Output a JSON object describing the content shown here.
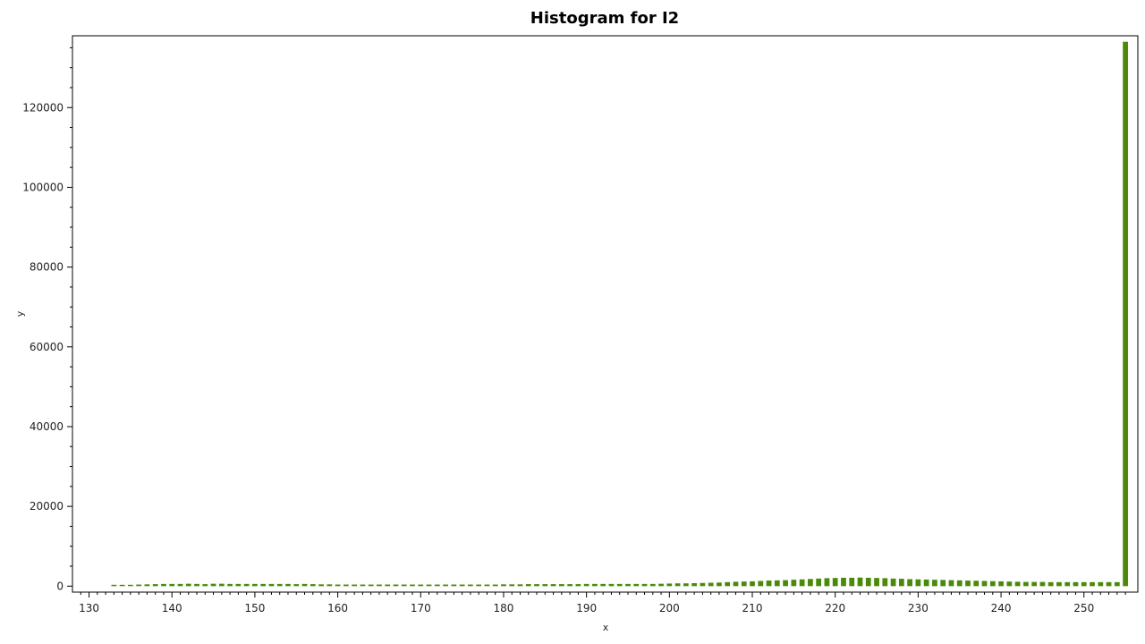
{
  "chart_data": {
    "type": "bar",
    "title": "Histogram for I2",
    "xlabel": "x",
    "ylabel": "y",
    "xlim": [
      128,
      256.5
    ],
    "ylim": [
      -1500,
      138000
    ],
    "xticks": [
      130,
      140,
      150,
      160,
      170,
      180,
      190,
      200,
      210,
      220,
      230,
      240,
      250
    ],
    "yticks": [
      0,
      20000,
      40000,
      60000,
      80000,
      100000,
      120000
    ],
    "grid": false,
    "legend": "none",
    "bar_color": "#4a8a08",
    "x": [
      133,
      134,
      135,
      136,
      137,
      138,
      139,
      140,
      141,
      142,
      143,
      144,
      145,
      146,
      147,
      148,
      149,
      150,
      151,
      152,
      153,
      154,
      155,
      156,
      157,
      158,
      159,
      160,
      161,
      162,
      163,
      164,
      165,
      166,
      167,
      168,
      169,
      170,
      171,
      172,
      173,
      174,
      175,
      176,
      177,
      178,
      179,
      180,
      181,
      182,
      183,
      184,
      185,
      186,
      187,
      188,
      189,
      190,
      191,
      192,
      193,
      194,
      195,
      196,
      197,
      198,
      199,
      200,
      201,
      202,
      203,
      204,
      205,
      206,
      207,
      208,
      209,
      210,
      211,
      212,
      213,
      214,
      215,
      216,
      217,
      218,
      219,
      220,
      221,
      222,
      223,
      224,
      225,
      226,
      227,
      228,
      229,
      230,
      231,
      232,
      233,
      234,
      235,
      236,
      237,
      238,
      239,
      240,
      241,
      242,
      243,
      244,
      245,
      246,
      247,
      248,
      249,
      250,
      251,
      252,
      253,
      254,
      255
    ],
    "values": [
      100,
      200,
      300,
      400,
      450,
      500,
      550,
      550,
      550,
      600,
      550,
      500,
      600,
      600,
      550,
      550,
      550,
      550,
      550,
      550,
      550,
      550,
      500,
      550,
      500,
      450,
      450,
      400,
      400,
      400,
      400,
      400,
      400,
      400,
      400,
      400,
      400,
      400,
      400,
      400,
      400,
      400,
      400,
      400,
      400,
      400,
      400,
      450,
      450,
      450,
      500,
      500,
      500,
      500,
      500,
      500,
      500,
      550,
      550,
      550,
      550,
      550,
      550,
      550,
      550,
      550,
      600,
      650,
      700,
      700,
      750,
      800,
      850,
      900,
      1000,
      1100,
      1150,
      1200,
      1300,
      1400,
      1450,
      1500,
      1600,
      1700,
      1800,
      1900,
      2000,
      2050,
      2100,
      2100,
      2150,
      2100,
      2050,
      2000,
      1900,
      1850,
      1750,
      1700,
      1650,
      1600,
      1550,
      1500,
      1450,
      1400,
      1350,
      1300,
      1250,
      1200,
      1150,
      1100,
      1050,
      1050,
      1050,
      1000,
      1000,
      1000,
      1000,
      1000,
      1000,
      1000,
      1000,
      1000,
      136500
    ]
  }
}
